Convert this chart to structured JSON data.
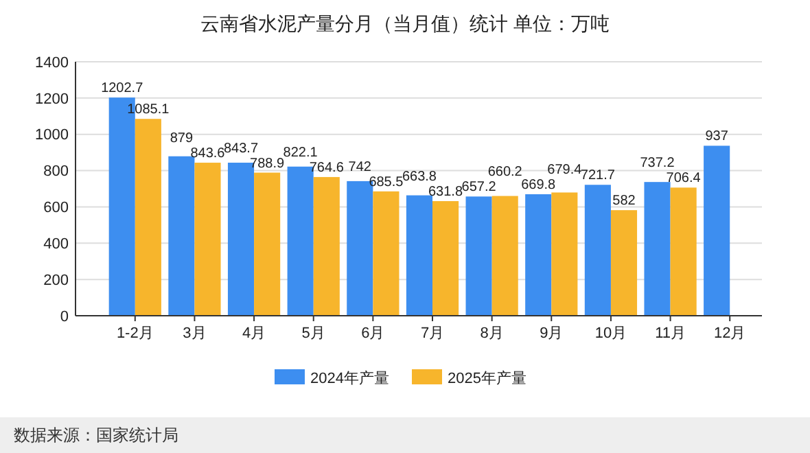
{
  "chart_data": {
    "type": "bar",
    "title": "云南省水泥产量分月（当月值）统计  单位：万吨",
    "categories": [
      "1-2月",
      "3月",
      "4月",
      "5月",
      "6月",
      "7月",
      "8月",
      "9月",
      "10月",
      "11月",
      "12月"
    ],
    "series": [
      {
        "name": "2024年产量",
        "color": "#3d8ef0",
        "values": [
          1202.7,
          879,
          843.7,
          822.1,
          742,
          663.8,
          657.2,
          669.8,
          721.7,
          737.2,
          937
        ]
      },
      {
        "name": "2025年产量",
        "color": "#f7b52c",
        "values": [
          1085.1,
          843.6,
          788.9,
          764.6,
          685.5,
          631.8,
          660.2,
          679.4,
          582,
          706.4,
          null
        ]
      }
    ],
    "ylim": [
      0,
      1400
    ],
    "yticks": [
      0,
      200,
      400,
      600,
      800,
      1000,
      1200,
      1400
    ],
    "grid": "y",
    "legend": "bottom",
    "data_labels": true,
    "annotations": [
      "数据来源：国家统计局"
    ]
  }
}
